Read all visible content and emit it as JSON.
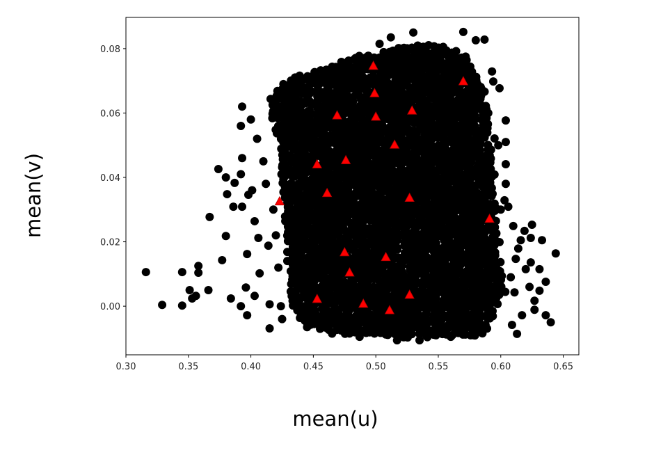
{
  "chart_data": {
    "type": "scatter",
    "title": "",
    "xlabel": "mean(u)",
    "ylabel": "mean(v)",
    "xlim": [
      0.3,
      0.6625
    ],
    "ylim": [
      -0.0151,
      0.0897
    ],
    "xticks": [
      "0.30",
      "0.35",
      "0.40",
      "0.45",
      "0.50",
      "0.55",
      "0.60",
      "0.65"
    ],
    "yticks": [
      "0.00",
      "0.02",
      "0.04",
      "0.06",
      "0.08"
    ],
    "grid": false,
    "series": [
      {
        "marker": "circle",
        "color": "#000000",
        "dense_region": [
          [
            0.418,
            0.067
          ],
          [
            0.43,
            0.071
          ],
          [
            0.455,
            0.0735
          ],
          [
            0.488,
            0.078
          ],
          [
            0.521,
            0.081
          ],
          [
            0.554,
            0.0815
          ],
          [
            0.573,
            0.078
          ],
          [
            0.587,
            0.067
          ],
          [
            0.595,
            0.041
          ],
          [
            0.598,
            0.019
          ],
          [
            0.604,
            0.004
          ],
          [
            0.587,
            -0.009
          ],
          [
            0.532,
            -0.01
          ],
          [
            0.477,
            -0.009
          ],
          [
            0.438,
            -0.0056
          ],
          [
            0.43,
            0.004
          ],
          [
            0.427,
            0.03
          ],
          [
            0.421,
            0.052
          ],
          [
            0.413,
            0.0625
          ]
        ],
        "points": [
          [
            0.316,
            0.0106
          ],
          [
            0.329,
            0.0004
          ],
          [
            0.345,
            0.0106
          ],
          [
            0.345,
            0.0002
          ],
          [
            0.358,
            0.0125
          ],
          [
            0.358,
            0.0104
          ],
          [
            0.351,
            0.005
          ],
          [
            0.353,
            0.0024
          ],
          [
            0.356,
            0.0032
          ],
          [
            0.366,
            0.005
          ],
          [
            0.367,
            0.0277
          ],
          [
            0.377,
            0.0143
          ],
          [
            0.38,
            0.0218
          ],
          [
            0.374,
            0.0426
          ],
          [
            0.38,
            0.04
          ],
          [
            0.381,
            0.0348
          ],
          [
            0.387,
            0.0383
          ],
          [
            0.386,
            0.0309
          ],
          [
            0.384,
            0.0024
          ],
          [
            0.393,
            0.0309
          ],
          [
            0.396,
            0.0058
          ],
          [
            0.392,
            0.0
          ],
          [
            0.397,
            -0.0028
          ],
          [
            0.397,
            0.0162
          ],
          [
            0.393,
            0.046
          ],
          [
            0.392,
            0.041
          ],
          [
            0.403,
            0.0032
          ],
          [
            0.407,
            0.0102
          ],
          [
            0.415,
            -0.0069
          ],
          [
            0.415,
            0.0006
          ],
          [
            0.403,
            0.0264
          ],
          [
            0.406,
            0.0212
          ],
          [
            0.414,
            0.0188
          ],
          [
            0.398,
            0.0346
          ],
          [
            0.401,
            0.036
          ],
          [
            0.392,
            0.056
          ],
          [
            0.393,
            0.062
          ],
          [
            0.4,
            0.058
          ],
          [
            0.405,
            0.052
          ],
          [
            0.41,
            0.045
          ],
          [
            0.412,
            0.038
          ],
          [
            0.418,
            0.03
          ],
          [
            0.42,
            0.022
          ],
          [
            0.422,
            0.012
          ],
          [
            0.424,
            0.0
          ],
          [
            0.42,
            0.064
          ],
          [
            0.425,
            -0.004
          ],
          [
            0.57,
            0.0852
          ],
          [
            0.58,
            0.0826
          ],
          [
            0.587,
            0.0828
          ],
          [
            0.593,
            0.0729
          ],
          [
            0.594,
            0.0698
          ],
          [
            0.599,
            0.0677
          ],
          [
            0.604,
            0.0577
          ],
          [
            0.604,
            0.051
          ],
          [
            0.595,
            0.0521
          ],
          [
            0.604,
            0.0441
          ],
          [
            0.604,
            0.038
          ],
          [
            0.603,
            0.0329
          ],
          [
            0.606,
            0.0309
          ],
          [
            0.61,
            0.0249
          ],
          [
            0.619,
            0.0234
          ],
          [
            0.625,
            0.0253
          ],
          [
            0.633,
            0.0205
          ],
          [
            0.644,
            0.0164
          ],
          [
            0.624,
            0.0212
          ],
          [
            0.616,
            0.0205
          ],
          [
            0.599,
            0.0199
          ],
          [
            0.614,
            0.0179
          ],
          [
            0.612,
            0.0147
          ],
          [
            0.624,
            0.0136
          ],
          [
            0.631,
            0.0115
          ],
          [
            0.636,
            0.0076
          ],
          [
            0.62,
            0.0115
          ],
          [
            0.623,
            0.006
          ],
          [
            0.631,
            0.0048
          ],
          [
            0.627,
            0.0017
          ],
          [
            0.627,
            -0.0011
          ],
          [
            0.636,
            -0.0028
          ],
          [
            0.64,
            -0.005
          ],
          [
            0.617,
            -0.0028
          ],
          [
            0.613,
            -0.0086
          ],
          [
            0.609,
            -0.0058
          ],
          [
            0.611,
            0.0043
          ],
          [
            0.608,
            0.009
          ],
          [
            0.6,
            0.03
          ],
          [
            0.598,
            0.05
          ],
          [
            0.59,
            0.06
          ],
          [
            0.512,
            0.0835
          ],
          [
            0.53,
            0.085
          ],
          [
            0.503,
            0.0815
          ],
          [
            0.451,
            0.0727
          ],
          [
            0.46,
            0.0733
          ],
          [
            0.517,
            -0.0106
          ],
          [
            0.535,
            -0.0106
          ],
          [
            0.487,
            -0.0095
          ],
          [
            0.465,
            -0.0085
          ],
          [
            0.445,
            -0.0065
          ],
          [
            0.56,
            -0.0095
          ],
          [
            0.578,
            -0.009
          ]
        ]
      },
      {
        "marker": "triangle",
        "color": "#ff0000",
        "points": [
          [
            0.498,
            0.0746
          ],
          [
            0.57,
            0.0698
          ],
          [
            0.499,
            0.0661
          ],
          [
            0.469,
            0.0592
          ],
          [
            0.5,
            0.0588
          ],
          [
            0.529,
            0.0607
          ],
          [
            0.515,
            0.0501
          ],
          [
            0.476,
            0.0453
          ],
          [
            0.453,
            0.044
          ],
          [
            0.461,
            0.0351
          ],
          [
            0.423,
            0.0325
          ],
          [
            0.527,
            0.0336
          ],
          [
            0.591,
            0.0271
          ],
          [
            0.475,
            0.0167
          ],
          [
            0.508,
            0.0152
          ],
          [
            0.479,
            0.0104
          ],
          [
            0.453,
            0.0022
          ],
          [
            0.49,
            0.0007
          ],
          [
            0.511,
            -0.0013
          ],
          [
            0.527,
            0.0035
          ]
        ]
      }
    ]
  }
}
